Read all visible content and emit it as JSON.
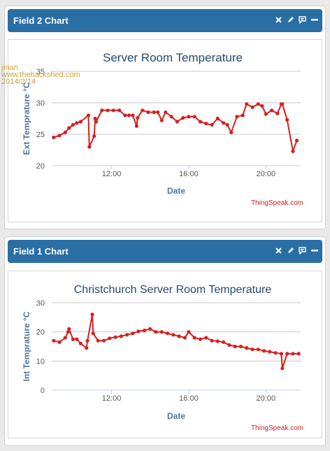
{
  "watermark": {
    "line1": "jman",
    "line2": "www.thebackshed.com",
    "line3": "2014/2/14"
  },
  "panels": [
    {
      "title": "Field 2 Chart",
      "icons": [
        "close-icon",
        "pencil-icon",
        "comment-icon",
        "minimize-icon"
      ]
    },
    {
      "title": "Field 1 Chart",
      "icons": [
        "close-icon",
        "pencil-icon",
        "comment-icon",
        "minimize-icon"
      ]
    }
  ],
  "colors": {
    "header": "#2a6ea6",
    "series": "#d62020",
    "title": "#274b6d",
    "axis_label": "#4d759e",
    "credit": "#cc2222"
  },
  "chart_data": [
    {
      "type": "line",
      "title": "Server Room Temperature",
      "xlabel": "Date",
      "ylabel": "Ext Temprature °C",
      "ylim": [
        20,
        35
      ],
      "yticks": [
        20,
        25,
        30,
        35
      ],
      "xlim": [
        8.9,
        21.8
      ],
      "xticks": [
        {
          "value": 12,
          "label": "12:00"
        },
        {
          "value": 16,
          "label": "16:00"
        },
        {
          "value": 20,
          "label": "20:00"
        }
      ],
      "grid": true,
      "credit": "ThingSpeak.com",
      "series": [
        {
          "x": [
            9.0,
            9.3,
            9.6,
            9.8,
            10.0,
            10.2,
            10.4,
            10.8,
            10.85,
            11.1,
            11.15,
            11.2,
            11.5,
            11.8,
            12.1,
            12.4,
            12.7,
            12.9,
            13.1,
            13.3,
            13.35,
            13.6,
            13.9,
            14.2,
            14.4,
            14.6,
            14.8,
            15.1,
            15.4,
            15.7,
            16.0,
            16.3,
            16.6,
            16.9,
            17.2,
            17.5,
            17.8,
            18.0,
            18.2,
            18.5,
            18.8,
            19.0,
            19.3,
            19.6,
            19.8,
            20.0,
            20.3,
            20.6,
            20.8,
            20.85,
            21.1,
            21.4,
            21.6
          ],
          "y": [
            24.5,
            24.8,
            25.3,
            26.0,
            26.5,
            26.8,
            27.0,
            28.0,
            23.0,
            24.7,
            27.5,
            27.0,
            28.8,
            28.8,
            28.8,
            28.8,
            28.0,
            28.0,
            28.0,
            26.3,
            27.6,
            28.8,
            28.5,
            28.5,
            28.5,
            27.2,
            28.5,
            27.8,
            27.0,
            27.6,
            27.8,
            27.8,
            27.0,
            26.7,
            26.5,
            27.5,
            26.8,
            26.5,
            25.3,
            27.8,
            28.0,
            29.8,
            29.3,
            29.8,
            29.5,
            28.2,
            28.8,
            28.3,
            29.8,
            29.8,
            27.3,
            22.3,
            24.0
          ]
        }
      ]
    },
    {
      "type": "line",
      "title": "Christchurch Server Room Temperature",
      "xlabel": "Date",
      "ylabel": "Int Temprature °C",
      "ylim": [
        0,
        30
      ],
      "yticks": [
        0,
        10,
        20,
        30
      ],
      "xlim": [
        8.9,
        21.8
      ],
      "xticks": [
        {
          "value": 12,
          "label": "12:00"
        },
        {
          "value": 16,
          "label": "16:00"
        },
        {
          "value": 20,
          "label": "20:00"
        }
      ],
      "grid": true,
      "credit": "ThingSpeak.com",
      "series": [
        {
          "x": [
            9.0,
            9.3,
            9.6,
            9.75,
            9.8,
            10.0,
            10.2,
            10.4,
            10.7,
            10.75,
            11.0,
            11.05,
            11.3,
            11.6,
            11.9,
            12.2,
            12.5,
            12.8,
            13.1,
            13.4,
            13.7,
            14.0,
            14.3,
            14.6,
            14.9,
            15.2,
            15.5,
            15.8,
            16.0,
            16.3,
            16.6,
            16.9,
            17.2,
            17.5,
            17.8,
            18.1,
            18.4,
            18.7,
            19.0,
            19.3,
            19.6,
            19.9,
            20.2,
            20.5,
            20.8,
            20.85,
            21.1,
            21.4,
            21.7
          ],
          "y": [
            17.0,
            16.5,
            18.0,
            20.0,
            21.0,
            17.5,
            17.5,
            16.0,
            14.5,
            17.0,
            26.0,
            19.5,
            17.0,
            17.0,
            17.8,
            18.2,
            18.5,
            19.0,
            19.5,
            20.2,
            20.5,
            21.0,
            20.0,
            20.0,
            19.5,
            19.0,
            18.5,
            18.0,
            20.0,
            18.0,
            17.5,
            18.0,
            17.0,
            16.8,
            16.5,
            15.5,
            15.0,
            15.0,
            14.5,
            14.0,
            14.0,
            13.5,
            13.2,
            12.8,
            12.5,
            7.5,
            12.5,
            12.5,
            12.5
          ]
        }
      ]
    }
  ]
}
